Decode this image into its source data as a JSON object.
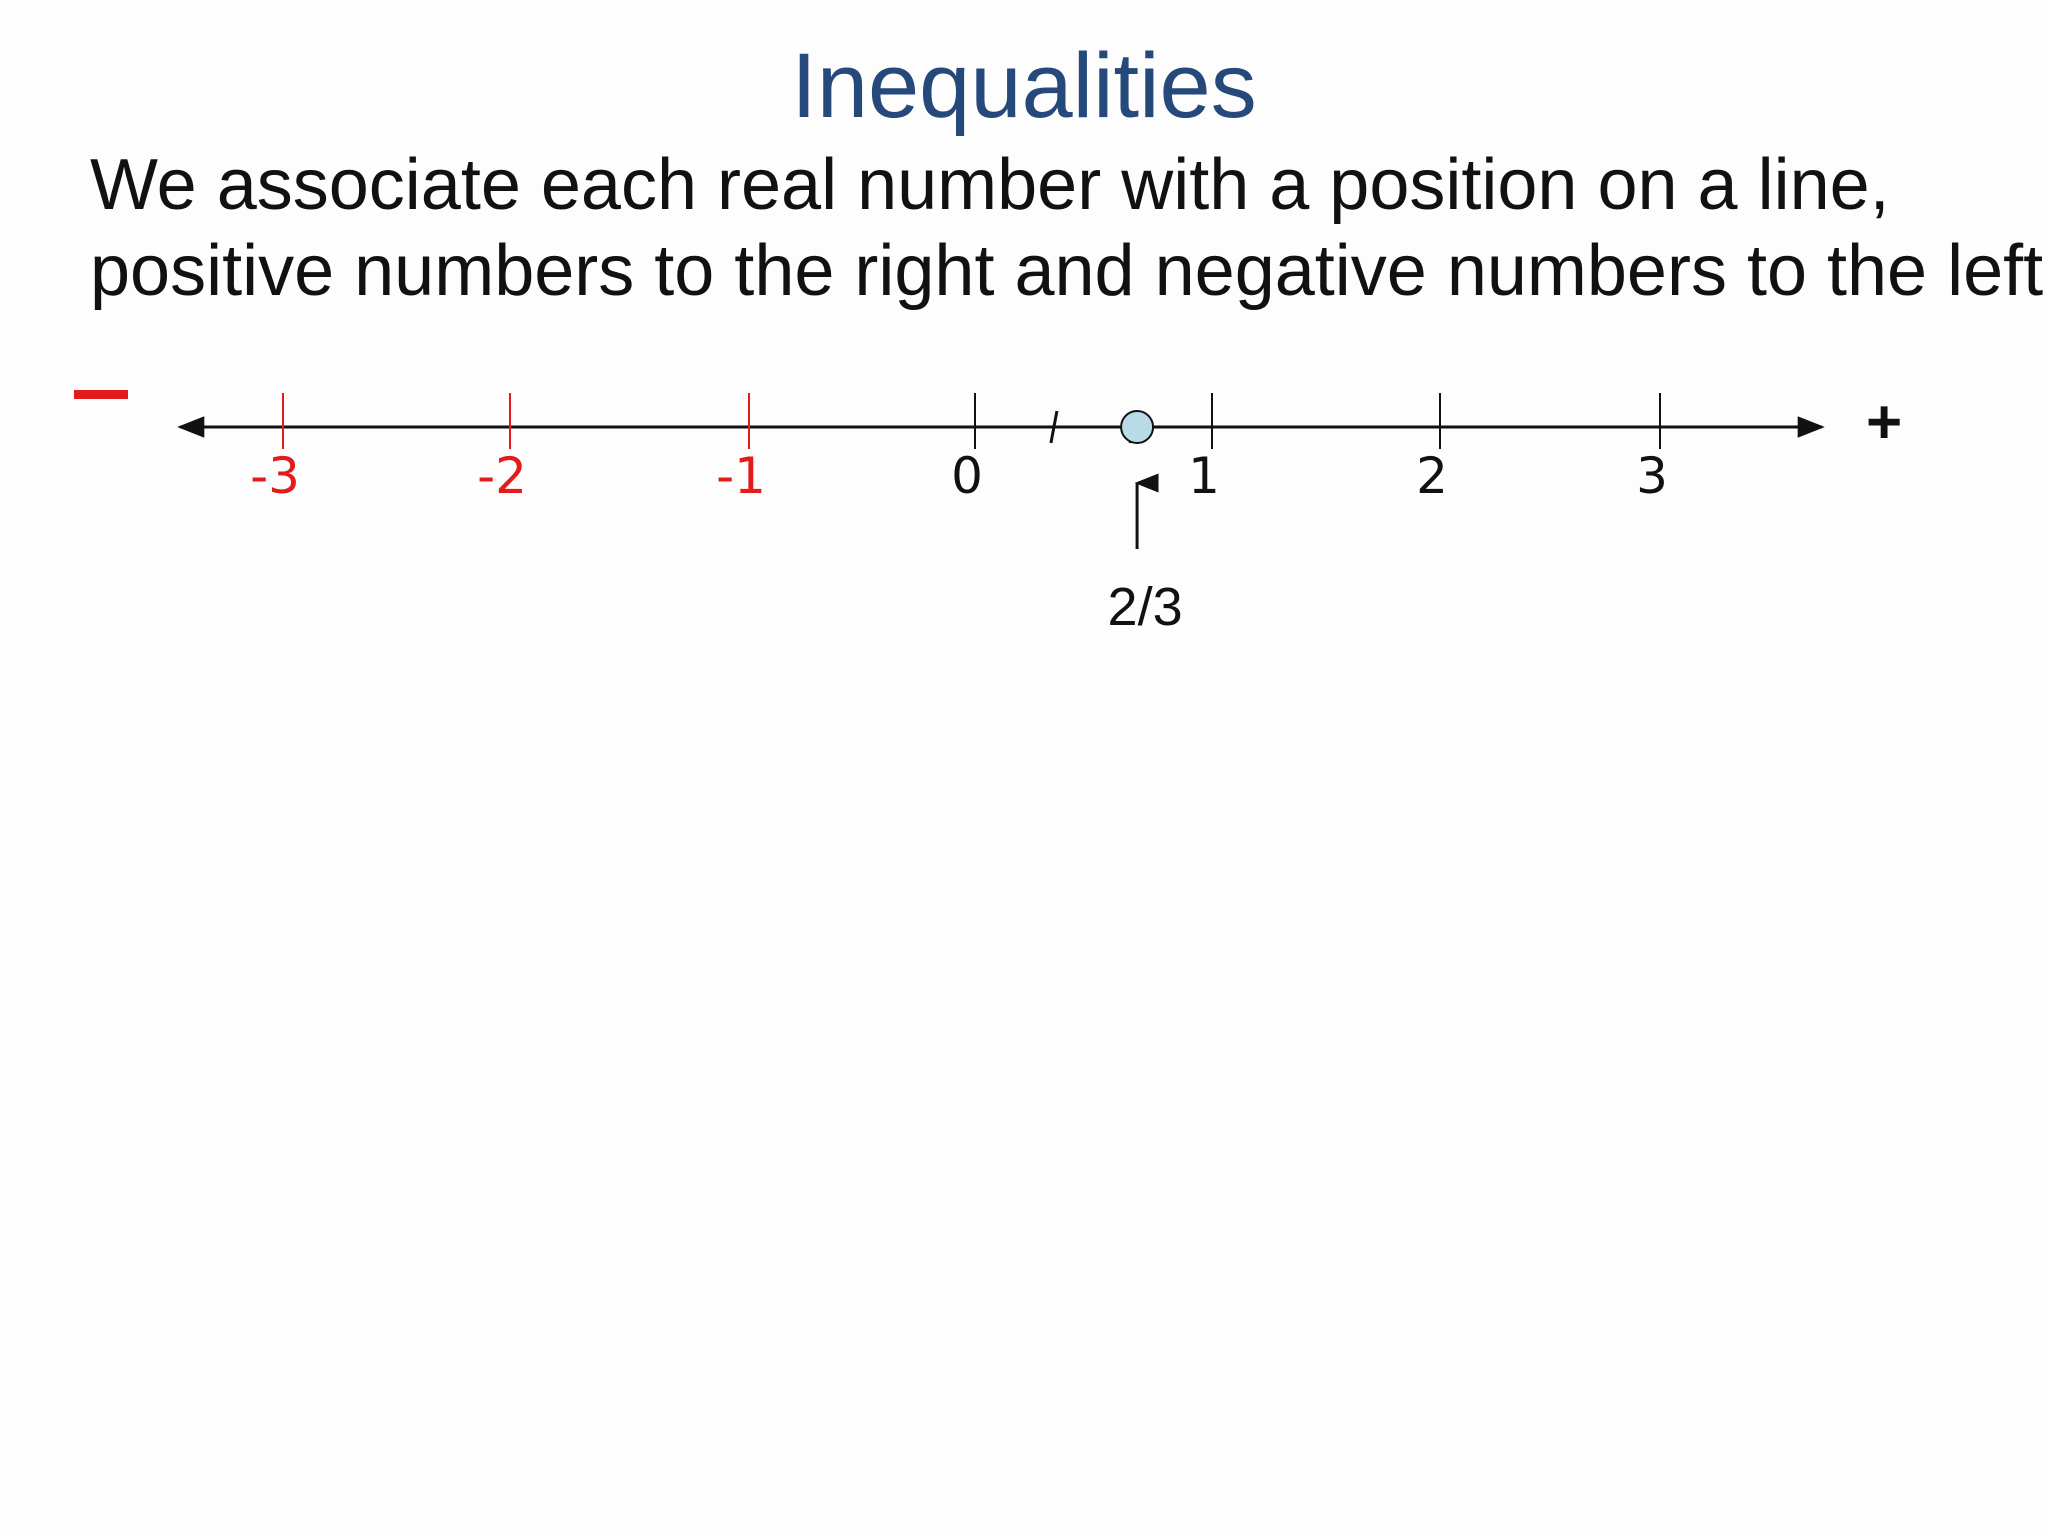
{
  "slide": {
    "title": "Inequalities",
    "lines": [
      "We associate each real number with a position on a line,",
      "positive numbers to the right and negative numbers to the left."
    ]
  },
  "number_line": {
    "left_sign": "–",
    "right_sign": "+",
    "colors": {
      "negative": "#e31b1b",
      "nonnegative": "#111111",
      "point_fill": "#b8dbe6",
      "title": "#24497a"
    },
    "ticks": [
      {
        "value": -3,
        "label": "-3"
      },
      {
        "value": -2,
        "label": "-2"
      },
      {
        "value": -1,
        "label": "-1"
      },
      {
        "value": 0,
        "label": "0"
      },
      {
        "value": 1,
        "label": "1"
      },
      {
        "value": 2,
        "label": "2"
      },
      {
        "value": 3,
        "label": "3"
      }
    ],
    "minor_marks": [
      0.333,
      0.667
    ],
    "highlighted_point": {
      "value": 0.667,
      "label": "2/3"
    }
  }
}
